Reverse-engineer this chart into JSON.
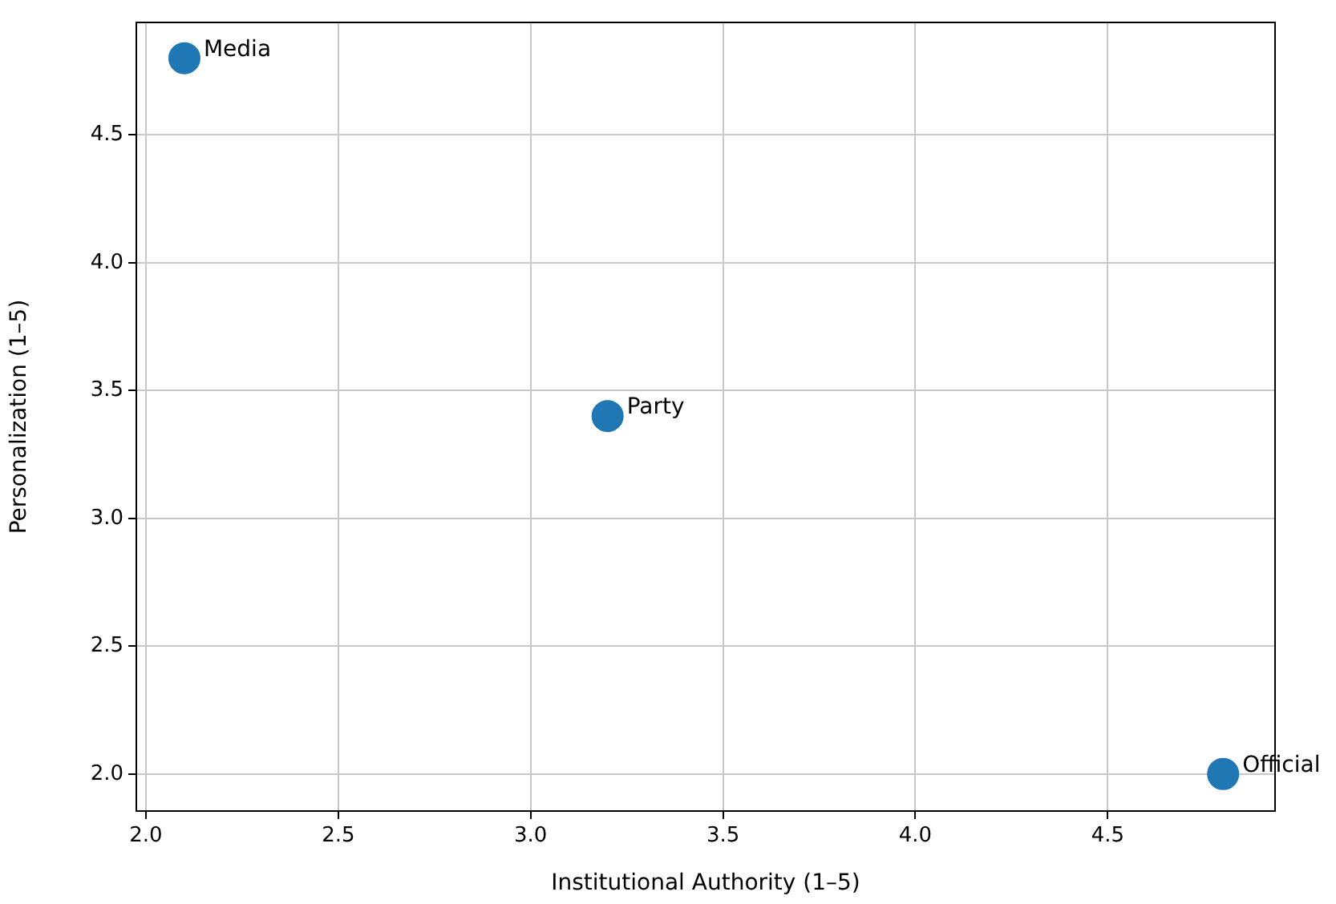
{
  "chart_data": {
    "type": "scatter",
    "xlabel": "Institutional Authority (1–5)",
    "ylabel": "Personalization (1–5)",
    "x": [
      2.1,
      3.2,
      4.8
    ],
    "series": [
      {
        "color": "#1f77b4",
        "values": [
          4.8,
          3.4,
          2.0
        ]
      }
    ],
    "annotations": [
      {
        "text": "Media",
        "x": 2.1,
        "y": 4.8
      },
      {
        "text": "Party",
        "x": 3.2,
        "y": 3.4
      },
      {
        "text": "Official",
        "x": 4.8,
        "y": 2.0
      }
    ],
    "xlim": [
      1.975,
      4.935
    ],
    "ylim": [
      1.855,
      4.94
    ],
    "xticks": [
      {
        "value": 2.0,
        "label": "2.0"
      },
      {
        "value": 2.5,
        "label": "2.5"
      },
      {
        "value": 3.0,
        "label": "3.0"
      },
      {
        "value": 3.5,
        "label": "3.5"
      },
      {
        "value": 4.0,
        "label": "4.0"
      },
      {
        "value": 4.5,
        "label": "4.5"
      }
    ],
    "yticks": [
      {
        "value": 2.0,
        "label": "2.0"
      },
      {
        "value": 2.5,
        "label": "2.5"
      },
      {
        "value": 3.0,
        "label": "3.0"
      },
      {
        "value": 3.5,
        "label": "3.5"
      },
      {
        "value": 4.0,
        "label": "4.0"
      },
      {
        "value": 4.5,
        "label": "4.5"
      }
    ],
    "grid": true,
    "marker": "circle",
    "legend": false
  }
}
